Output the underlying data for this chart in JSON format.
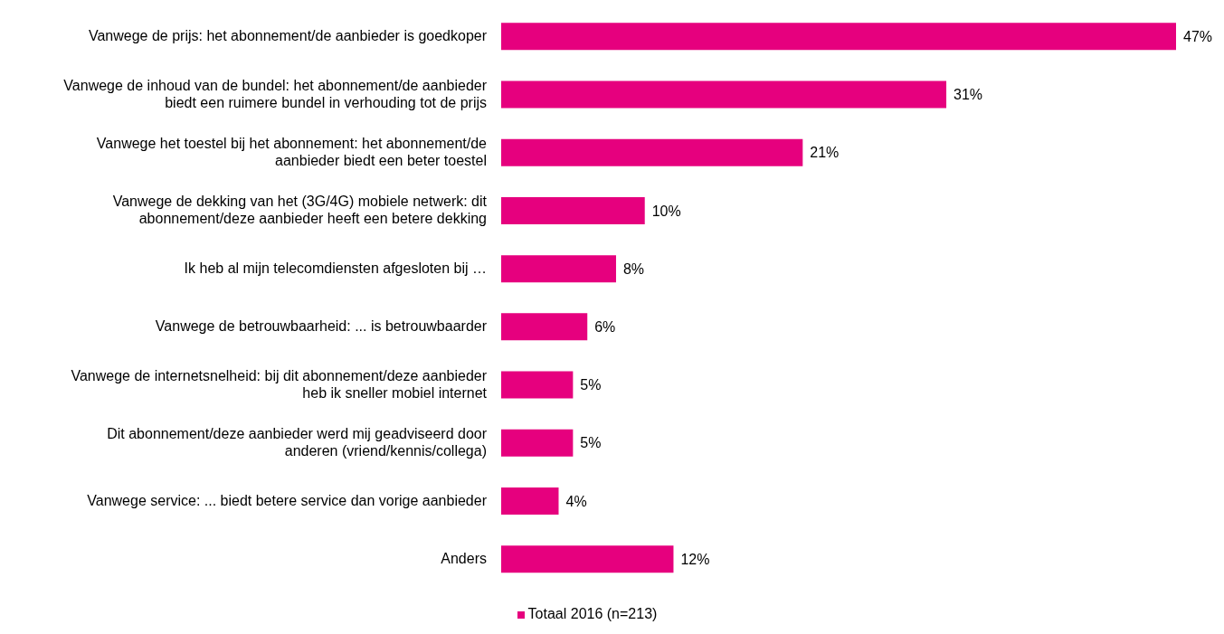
{
  "chart_data": {
    "type": "bar",
    "orientation": "horizontal",
    "categories": [
      "Vanwege de prijs: het abonnement/de aanbieder is goedkoper",
      "Vanwege de inhoud van de bundel: het abonnement/de aanbieder biedt een ruimere bundel in verhouding tot de prijs",
      "Vanwege het toestel bij het abonnement: het abonnement/de aanbieder biedt een beter toestel",
      "Vanwege de dekking van het (3G/4G) mobiele netwerk: dit abonnement/deze aanbieder heeft een betere dekking",
      "Ik heb al mijn telecomdiensten afgesloten bij …",
      "Vanwege de betrouwbaarheid: ... is betrouwbaarder",
      "Vanwege de internetsnelheid: bij dit abonnement/deze aanbieder heb ik sneller mobiel internet",
      "Dit abonnement/deze aanbieder werd mij geadviseerd door anderen (vriend/kennis/collega)",
      "Vanwege service: ... biedt betere service dan vorige aanbieder",
      "Anders"
    ],
    "series": [
      {
        "name": "Totaal 2016 (n=213)",
        "color": "#e6007e",
        "values": [
          47,
          31,
          21,
          10,
          8,
          6,
          5,
          5,
          4,
          12
        ],
        "value_labels": [
          "47%",
          "31%",
          "21%",
          "10%",
          "8%",
          "6%",
          "5%",
          "5%",
          "4%",
          "12%"
        ]
      }
    ],
    "legend": "bottom"
  }
}
